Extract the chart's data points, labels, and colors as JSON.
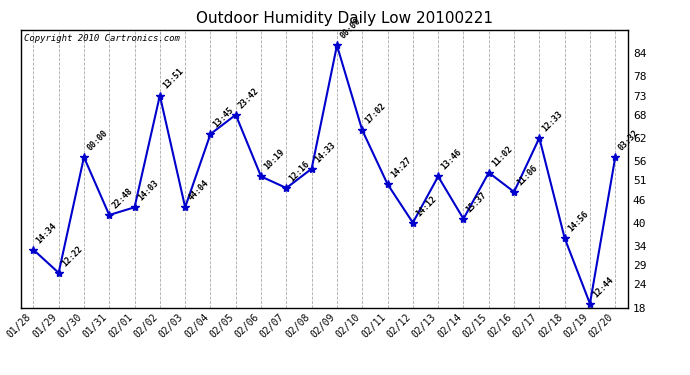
{
  "title": "Outdoor Humidity Daily Low 20100221",
  "copyright": "Copyright 2010 Cartronics.com",
  "x_labels": [
    "01/28",
    "01/29",
    "01/30",
    "01/31",
    "02/01",
    "02/02",
    "02/03",
    "02/04",
    "02/05",
    "02/06",
    "02/07",
    "02/08",
    "02/09",
    "02/10",
    "02/11",
    "02/12",
    "02/13",
    "02/14",
    "02/15",
    "02/16",
    "02/17",
    "02/18",
    "02/19",
    "02/20"
  ],
  "y_values": [
    33,
    27,
    57,
    42,
    44,
    73,
    44,
    63,
    68,
    52,
    49,
    54,
    86,
    64,
    50,
    40,
    52,
    41,
    53,
    48,
    62,
    36,
    19,
    57
  ],
  "point_labels": [
    "14:34",
    "12:22",
    "00:00",
    "22:48",
    "14:03",
    "13:51",
    "44:04",
    "13:45",
    "23:42",
    "10:19",
    "12:16",
    "14:33",
    "00:00",
    "17:02",
    "14:27",
    "14:12",
    "13:46",
    "15:37",
    "11:02",
    "11:06",
    "12:33",
    "14:56",
    "12:44",
    "03:32"
  ],
  "line_color": "#0000cc",
  "marker_color": "#0000cc",
  "bg_color": "#ffffff",
  "grid_color": "#aaaaaa",
  "ylim": [
    18,
    90
  ],
  "yticks_right": [
    84,
    78,
    73,
    68,
    62,
    56,
    51,
    46,
    40,
    34,
    29,
    24,
    18
  ],
  "title_fontsize": 11,
  "label_fontsize": 7.5
}
